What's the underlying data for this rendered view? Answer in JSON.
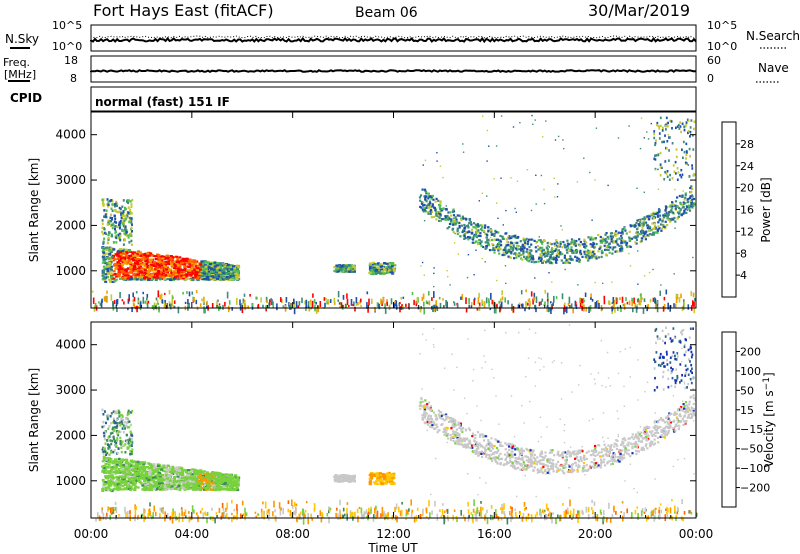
{
  "header": {
    "station": "Fort Hays East (fitACF)",
    "beam": "Beam 06",
    "date": "30/Mar/2019"
  },
  "top_panels": {
    "noise": {
      "left_label": "N.Sky",
      "right_label": "N.Search",
      "left_ticks": [
        "10^5",
        "10^0"
      ],
      "right_ticks": [
        "10^5",
        "10^0"
      ]
    },
    "freq": {
      "left_label_1": "Freq.",
      "left_label_2": "[MHz]",
      "right_label": "Nave",
      "left_ticks": [
        "18",
        "8"
      ],
      "right_ticks": [
        "60",
        "0"
      ]
    },
    "cpid": {
      "label": "CPID",
      "value": "normal (fast) 151 IF"
    }
  },
  "chart_data": [
    {
      "type": "heatmap",
      "name": "power",
      "ylabel": "Slant Range [km]",
      "xlabel": "",
      "x_ticks": [
        "00:00",
        "04:00",
        "08:00",
        "12:00",
        "16:00",
        "20:00",
        "00:00"
      ],
      "x_range_hours": [
        0,
        24
      ],
      "y_ticks": [
        1000,
        2000,
        3000,
        4000
      ],
      "y_range_km": [
        180,
        4500
      ],
      "colorbar": {
        "label": "Power [dB]",
        "ticks": [
          "4",
          "8",
          "12",
          "16",
          "20",
          "24",
          "28"
        ],
        "colors": [
          "#0000ff",
          "#1e50aa",
          "#3c8c78",
          "#50be50",
          "#c8c832",
          "#f0a000",
          "#ff6400",
          "#ff0000"
        ]
      },
      "regions": [
        {
          "desc": "early echoes",
          "x": [
            0.4,
            5.8
          ],
          "y_km": [
            780,
            1600
          ],
          "level": "high"
        },
        {
          "desc": "early upper echoes",
          "x": [
            0.4,
            1.6
          ],
          "y_km": [
            1600,
            2600
          ],
          "level": "medium"
        },
        {
          "desc": "midday patches",
          "x": [
            9.6,
            12.0
          ],
          "y_km": [
            900,
            1200
          ],
          "level": "medium"
        },
        {
          "desc": "evening arc",
          "x": [
            12.8,
            23.9
          ],
          "y_km": [
            1000,
            4500
          ],
          "level": "low"
        },
        {
          "desc": "near-range clutter",
          "x": [
            0.0,
            24.0
          ],
          "y_km": [
            180,
            600
          ],
          "level": "mixed"
        }
      ],
      "legend": "colorbar-right",
      "grid": false
    },
    {
      "type": "heatmap",
      "name": "velocity",
      "ylabel": "Slant Range [km]",
      "xlabel": "Time UT",
      "x_ticks": [
        "00:00",
        "04:00",
        "08:00",
        "12:00",
        "16:00",
        "20:00",
        "00:00"
      ],
      "x_range_hours": [
        0,
        24
      ],
      "y_ticks": [
        1000,
        2000,
        3000,
        4000
      ],
      "y_range_km": [
        180,
        4500
      ],
      "colorbar": {
        "label": "Velocity [m s^-1]",
        "ticks": [
          "200",
          "100",
          "50",
          "15",
          "-15",
          "-50",
          "-100",
          "-200"
        ],
        "colors": [
          "#1432b4",
          "#28648c",
          "#3c8c5a",
          "#78d23c",
          "#c8c8c8",
          "#ffc800",
          "#ff9600",
          "#ff6400",
          "#ff0000"
        ]
      },
      "regions": [
        {
          "desc": "early echoes (toward)",
          "x": [
            0.4,
            5.8
          ],
          "y_km": [
            780,
            1600
          ],
          "velocity": "50"
        },
        {
          "desc": "early upper echoes",
          "x": [
            0.4,
            1.6
          ],
          "y_km": [
            1600,
            2600
          ],
          "velocity": "100"
        },
        {
          "desc": "midday patch",
          "x": [
            11.2,
            12.2
          ],
          "y_km": [
            900,
            1150
          ],
          "velocity": "-50"
        },
        {
          "desc": "evening arc (ground scatter)",
          "x": [
            12.8,
            23.9
          ],
          "y_km": [
            1000,
            4500
          ],
          "velocity": "0"
        },
        {
          "desc": "near-range clutter",
          "x": [
            0.0,
            24.0
          ],
          "y_km": [
            180,
            600
          ],
          "velocity": "-50"
        }
      ],
      "legend": "colorbar-right",
      "grid": false
    }
  ]
}
